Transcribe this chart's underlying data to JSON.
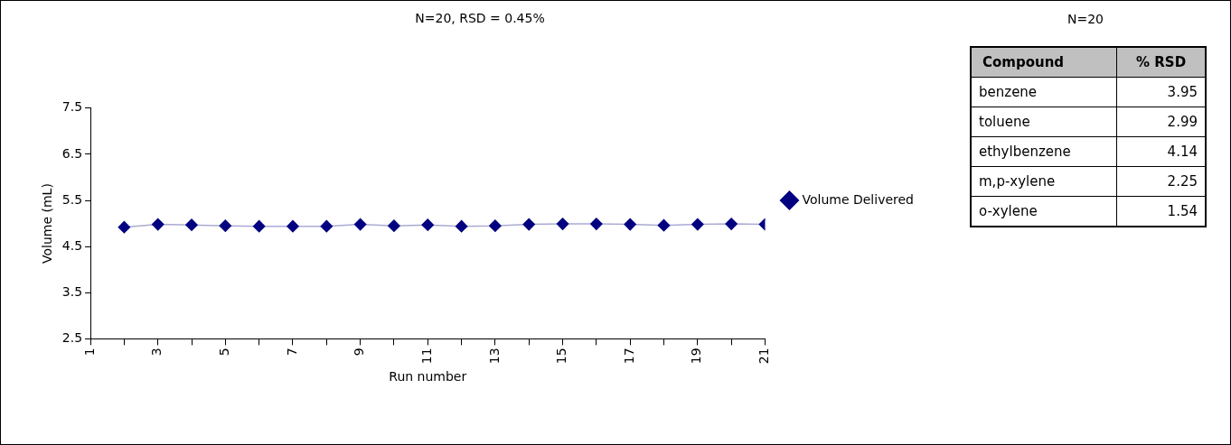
{
  "chart_data": [
    {
      "type": "line",
      "title": "N=20, RSD = 0.45%",
      "xlabel": "Run number",
      "ylabel": "Volume (mL)",
      "x": [
        2,
        3,
        4,
        5,
        6,
        7,
        8,
        9,
        10,
        11,
        12,
        13,
        14,
        15,
        16,
        17,
        18,
        19,
        20,
        21
      ],
      "series": [
        {
          "name": "Volume Delivered",
          "color": "#000080",
          "values": [
            4.92,
            4.98,
            4.97,
            4.95,
            4.94,
            4.94,
            4.94,
            4.98,
            4.95,
            4.97,
            4.94,
            4.95,
            4.98,
            4.99,
            4.99,
            4.98,
            4.96,
            4.98,
            4.99,
            4.98
          ]
        }
      ],
      "xlim": [
        1,
        21
      ],
      "xticks": [
        1,
        {
          "value": 2,
          "label": null
        },
        3,
        {
          "value": 4,
          "label": null
        },
        5,
        {
          "value": 6,
          "label": null
        },
        7,
        {
          "value": 8,
          "label": null
        },
        9,
        {
          "value": 10,
          "label": null
        },
        11,
        {
          "value": 12,
          "label": null
        },
        13,
        {
          "value": 14,
          "label": null
        },
        15,
        {
          "value": 16,
          "label": null
        },
        17,
        {
          "value": 18,
          "label": null
        },
        19,
        {
          "value": 20,
          "label": null
        },
        21
      ],
      "ylim": [
        2.5,
        7.5
      ],
      "yticks": [
        2.5,
        3.5,
        4.5,
        5.5,
        6.5,
        7.5
      ],
      "grid": false,
      "legend": "right",
      "marker": "diamond",
      "line_style": "solid"
    },
    {
      "type": "other",
      "title": "N=20",
      "xlabel": "Compound",
      "ylabel": "% RSD",
      "categories": [
        "benzene",
        "toluene",
        "ethylbenzene",
        "m,p-xylene",
        "o-xylene"
      ],
      "values": [
        3.95,
        2.99,
        4.14,
        2.25,
        1.54
      ],
      "data_labels": true
    }
  ]
}
